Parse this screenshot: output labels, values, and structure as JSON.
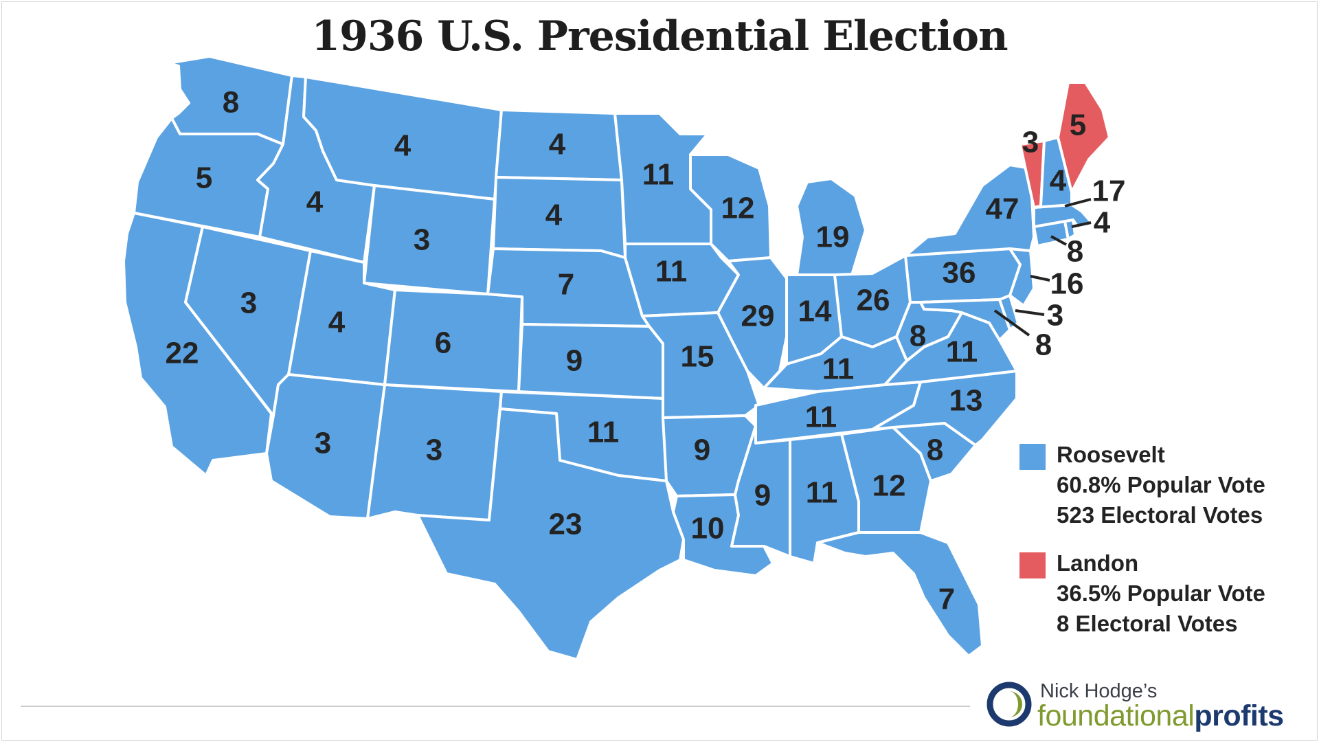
{
  "title": "1936 U.S. Presidential Election",
  "colors": {
    "roosevelt": "#5ba2e2",
    "landon": "#e45c60",
    "border": "#ffffff",
    "label": "#232323"
  },
  "legend": [
    {
      "name": "Roosevelt",
      "popular": "60.8% Popular Vote",
      "electoral": "523 Electoral Votes"
    },
    {
      "name": "Landon",
      "popular": "36.5% Popular Vote",
      "electoral": "8 Electoral Votes"
    }
  ],
  "states": {
    "WA": {
      "ev": "8",
      "winner": "roosevelt"
    },
    "OR": {
      "ev": "5",
      "winner": "roosevelt"
    },
    "CA": {
      "ev": "22",
      "winner": "roosevelt"
    },
    "NV": {
      "ev": "3",
      "winner": "roosevelt"
    },
    "ID": {
      "ev": "4",
      "winner": "roosevelt"
    },
    "MT": {
      "ev": "4",
      "winner": "roosevelt"
    },
    "WY": {
      "ev": "3",
      "winner": "roosevelt"
    },
    "UT": {
      "ev": "4",
      "winner": "roosevelt"
    },
    "AZ": {
      "ev": "3",
      "winner": "roosevelt"
    },
    "CO": {
      "ev": "6",
      "winner": "roosevelt"
    },
    "NM": {
      "ev": "3",
      "winner": "roosevelt"
    },
    "ND": {
      "ev": "4",
      "winner": "roosevelt"
    },
    "SD": {
      "ev": "4",
      "winner": "roosevelt"
    },
    "NE": {
      "ev": "7",
      "winner": "roosevelt"
    },
    "KS": {
      "ev": "9",
      "winner": "roosevelt"
    },
    "OK": {
      "ev": "11",
      "winner": "roosevelt"
    },
    "TX": {
      "ev": "23",
      "winner": "roosevelt"
    },
    "MN": {
      "ev": "11",
      "winner": "roosevelt"
    },
    "IA": {
      "ev": "11",
      "winner": "roosevelt"
    },
    "MO": {
      "ev": "15",
      "winner": "roosevelt"
    },
    "AR": {
      "ev": "9",
      "winner": "roosevelt"
    },
    "LA": {
      "ev": "10",
      "winner": "roosevelt"
    },
    "WI": {
      "ev": "12",
      "winner": "roosevelt"
    },
    "IL": {
      "ev": "29",
      "winner": "roosevelt"
    },
    "MI": {
      "ev": "19",
      "winner": "roosevelt"
    },
    "IN": {
      "ev": "14",
      "winner": "roosevelt"
    },
    "OH": {
      "ev": "26",
      "winner": "roosevelt"
    },
    "KY": {
      "ev": "11",
      "winner": "roosevelt"
    },
    "TN": {
      "ev": "11",
      "winner": "roosevelt"
    },
    "MS": {
      "ev": "9",
      "winner": "roosevelt"
    },
    "AL": {
      "ev": "11",
      "winner": "roosevelt"
    },
    "GA": {
      "ev": "12",
      "winner": "roosevelt"
    },
    "FL": {
      "ev": "7",
      "winner": "roosevelt"
    },
    "SC": {
      "ev": "8",
      "winner": "roosevelt"
    },
    "NC": {
      "ev": "13",
      "winner": "roosevelt"
    },
    "VA": {
      "ev": "11",
      "winner": "roosevelt"
    },
    "WV": {
      "ev": "8",
      "winner": "roosevelt"
    },
    "PA": {
      "ev": "36",
      "winner": "roosevelt"
    },
    "NY": {
      "ev": "47",
      "winner": "roosevelt"
    },
    "VT": {
      "ev": "3",
      "winner": "landon"
    },
    "ME": {
      "ev": "5",
      "winner": "landon"
    },
    "NH": {
      "ev": "4",
      "winner": "roosevelt"
    },
    "MA": {
      "ev": "17",
      "winner": "roosevelt"
    },
    "RI": {
      "ev": "4",
      "winner": "roosevelt"
    },
    "CT": {
      "ev": "8",
      "winner": "roosevelt"
    },
    "NJ": {
      "ev": "16",
      "winner": "roosevelt"
    },
    "DE": {
      "ev": "3",
      "winner": "roosevelt"
    },
    "MD": {
      "ev": "8",
      "winner": "roosevelt"
    }
  },
  "logo": {
    "line1": "Nick Hodge’s",
    "part1": "foundational",
    "part2": "profits"
  }
}
